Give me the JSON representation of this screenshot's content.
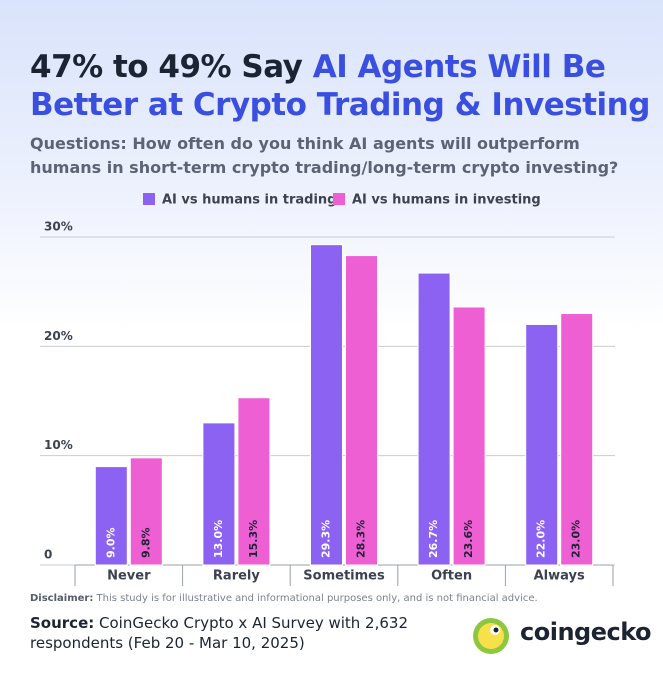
{
  "chart_data": {
    "type": "bar",
    "title": [
      "47% to 49% Say",
      "AI Agents Will Be Better at Crypto Trading & Investing"
    ],
    "subtitle": "Questions: How often do you think AI agents will outperform humans in short-term crypto trading/long-term crypto investing?",
    "categories": [
      "Never",
      "Rarely",
      "Sometimes",
      "Often",
      "Always"
    ],
    "series": [
      {
        "name": "AI vs humans in trading",
        "color": "#8b62f2",
        "values": [
          9.0,
          13.0,
          29.3,
          26.7,
          22.0
        ],
        "value_labels": [
          "9.0%",
          "13.0%",
          "29.3%",
          "26.7%",
          "22.0%"
        ]
      },
      {
        "name": "AI vs humans in investing",
        "color": "#ef5fd4",
        "values": [
          9.8,
          15.3,
          28.3,
          23.6,
          23.0
        ],
        "value_labels": [
          "9.8%",
          "15.3%",
          "28.3%",
          "23.6%",
          "23.0%"
        ]
      }
    ],
    "ylim": [
      0,
      30
    ],
    "yticks": [
      0,
      {
        "value": 10,
        "label": "10%"
      },
      {
        "value": 20,
        "label": "20%"
      },
      {
        "value": 30,
        "label": "30%"
      }
    ],
    "grid": true,
    "legend": "top",
    "disclaimer": [
      "Disclaimer:",
      "This study is for illustrative and informational purposes only, and is not financial advice."
    ],
    "source": [
      "Source:",
      "CoinGecko Crypto x AI Survey with 2,632 respondents (Feb 20 - Mar 10, 2025)"
    ],
    "brand": "coingecko"
  }
}
